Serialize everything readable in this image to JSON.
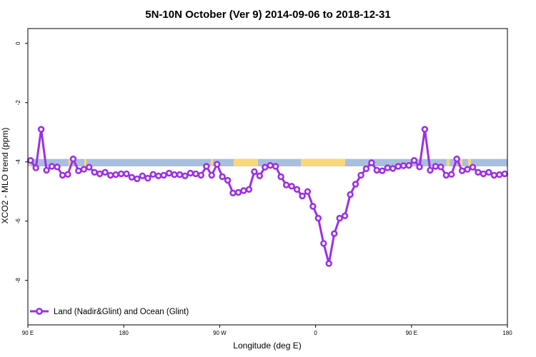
{
  "chart_data": {
    "type": "line",
    "title": "5N-10N October (Ver 9)   2014-09-06 to 2018-12-31",
    "xlabel": "Longitude (deg E)",
    "ylabel": "XCO2 - MLO trend (ppm)",
    "xlim": [
      90,
      540
    ],
    "ylim": [
      -9.5,
      0.5
    ],
    "x_ticks": [
      {
        "value": 90,
        "label": "90 E"
      },
      {
        "value": 180,
        "label": "180"
      },
      {
        "value": 270,
        "label": "90 W"
      },
      {
        "value": 360,
        "label": "0"
      },
      {
        "value": 450,
        "label": "90 E"
      },
      {
        "value": 540,
        "label": "180"
      }
    ],
    "y_ticks": [
      {
        "value": 0,
        "label": "0"
      },
      {
        "value": -2,
        "label": "-2"
      },
      {
        "value": -4,
        "label": "-4"
      },
      {
        "value": -6,
        "label": "-6"
      },
      {
        "value": -8,
        "label": "-8"
      }
    ],
    "grid": false,
    "legend_position": "bottom-left",
    "land_band": {
      "y_top": -3.9,
      "y_bottom": -4.15,
      "ocean_color": "#a8bfdf",
      "land_color": "#f9d77a"
    },
    "series": [
      {
        "name": "Land (Nadir&Glint) and Ocean (Glint)",
        "color": "#9b30e6",
        "x": [
          92.5,
          97.5,
          102.5,
          107.5,
          112.5,
          117.5,
          122.5,
          127.5,
          132.5,
          137.5,
          142.5,
          147.5,
          152.5,
          157.5,
          162.5,
          167.5,
          172.5,
          177.5,
          182.5,
          187.5,
          192.5,
          197.5,
          202.5,
          207.5,
          212.5,
          217.5,
          222.5,
          227.5,
          232.5,
          237.5,
          242.5,
          247.5,
          252.5,
          257.5,
          262.5,
          267.5,
          272.5,
          277.5,
          282.5,
          287.5,
          292.5,
          297.5,
          302.5,
          307.5,
          312.5,
          317.5,
          322.5,
          327.5,
          332.5,
          337.5,
          342.5,
          347.5,
          352.5,
          357.5,
          362.5,
          367.5,
          372.5,
          377.5,
          382.5,
          387.5,
          392.5,
          397.5,
          402.5,
          407.5,
          412.5,
          417.5,
          422.5,
          427.5,
          432.5,
          437.5,
          442.5,
          447.5,
          452.5,
          457.5,
          462.5,
          467.5,
          472.5,
          477.5,
          482.5,
          487.5,
          492.5,
          497.5,
          502.5,
          507.5,
          512.5,
          517.5,
          522.5,
          527.5,
          532.5,
          537.5
        ],
        "values": [
          -3.95,
          -4.2,
          -2.9,
          -4.28,
          -4.15,
          -4.17,
          -4.45,
          -4.42,
          -3.9,
          -4.3,
          -4.25,
          -4.18,
          -4.35,
          -4.4,
          -4.35,
          -4.45,
          -4.43,
          -4.4,
          -4.4,
          -4.52,
          -4.57,
          -4.47,
          -4.55,
          -4.42,
          -4.47,
          -4.45,
          -4.38,
          -4.43,
          -4.43,
          -4.47,
          -4.38,
          -4.4,
          -4.45,
          -4.15,
          -4.45,
          -4.08,
          -4.5,
          -4.62,
          -5.05,
          -5.03,
          -4.97,
          -4.93,
          -4.33,
          -4.47,
          -4.18,
          -4.12,
          -4.15,
          -4.5,
          -4.78,
          -4.82,
          -4.93,
          -5.15,
          -5.0,
          -5.5,
          -5.9,
          -6.75,
          -7.43,
          -6.42,
          -5.9,
          -5.82,
          -5.1,
          -4.75,
          -4.45,
          -4.23,
          -4.03,
          -4.28,
          -4.3,
          -4.2,
          -4.22,
          -4.15,
          -4.13,
          -4.12,
          -3.95,
          -4.17,
          -2.9,
          -4.28,
          -4.15,
          -4.17,
          -4.45,
          -4.42,
          -3.9,
          -4.3,
          -4.25,
          -4.18,
          -4.35,
          -4.4,
          -4.35,
          -4.45,
          -4.43,
          -4.4
        ]
      }
    ]
  }
}
